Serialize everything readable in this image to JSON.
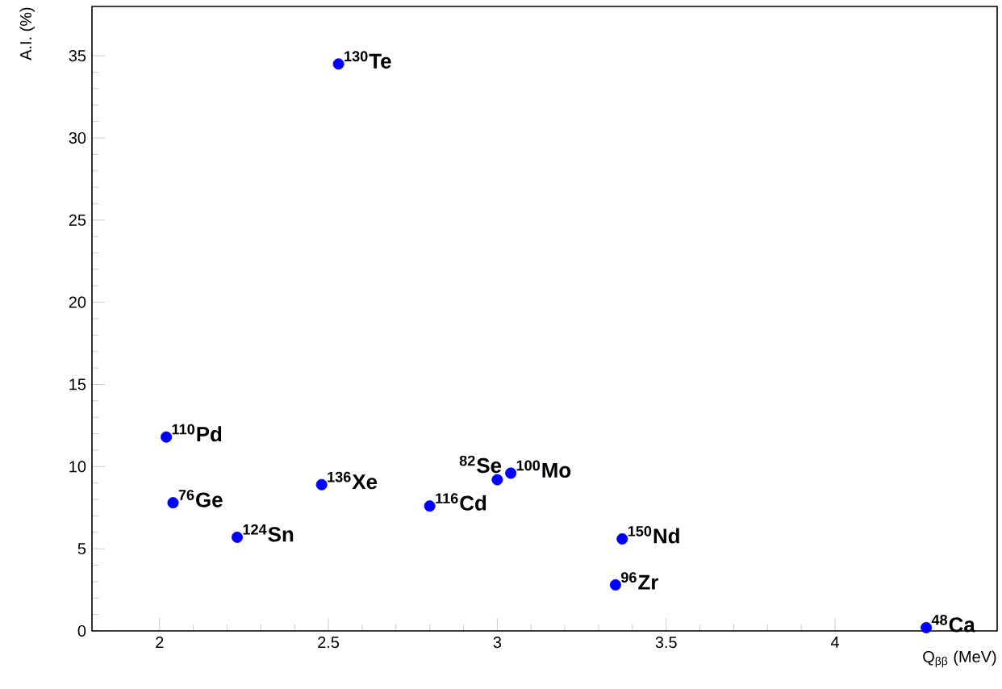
{
  "chart_data": {
    "type": "scatter",
    "xlabel": "Q$_{ββ}$ (MeV)",
    "ylabel": "A.I. (%)",
    "x": [
      2.02,
      2.04,
      2.23,
      2.48,
      2.53,
      2.8,
      3.0,
      3.04,
      3.37,
      3.35,
      4.27
    ],
    "series": [
      {
        "color": "#0000ff",
        "values": [
          11.8,
          7.8,
          5.7,
          8.9,
          34.5,
          7.6,
          9.2,
          9.6,
          5.6,
          2.8,
          0.2
        ]
      }
    ],
    "marker": "circle",
    "grid": false,
    "xlim": [
      1.8,
      4.48
    ],
    "ylim": [
      0,
      38
    ],
    "xticks": [
      2,
      2.5,
      3,
      3.5,
      4
    ],
    "yticks": [
      0,
      5,
      10,
      15,
      20,
      25,
      30,
      35
    ],
    "annotations": [
      {
        "text": "$^{110}$Pd",
        "x": 2.02,
        "y": 11.8
      },
      {
        "text": "$^{76}$Ge",
        "x": 2.04,
        "y": 7.8
      },
      {
        "text": "$^{124}$Sn",
        "x": 2.23,
        "y": 5.7
      },
      {
        "text": "$^{136}$Xe",
        "x": 2.48,
        "y": 8.9
      },
      {
        "text": "$^{130}$Te",
        "x": 2.53,
        "y": 34.5
      },
      {
        "text": "$^{116}$Cd",
        "x": 2.8,
        "y": 7.6
      },
      {
        "text": "$^{82}$Se",
        "x": 3.0,
        "y": 9.2
      },
      {
        "text": "$^{100}$Mo",
        "x": 3.04,
        "y": 9.6
      },
      {
        "text": "$^{150}$Nd",
        "x": 3.37,
        "y": 5.6
      },
      {
        "text": "$^{96}$Zr",
        "x": 3.35,
        "y": 2.8
      },
      {
        "text": "$^{48}$Ca",
        "x": 4.27,
        "y": 0.2
      }
    ]
  }
}
